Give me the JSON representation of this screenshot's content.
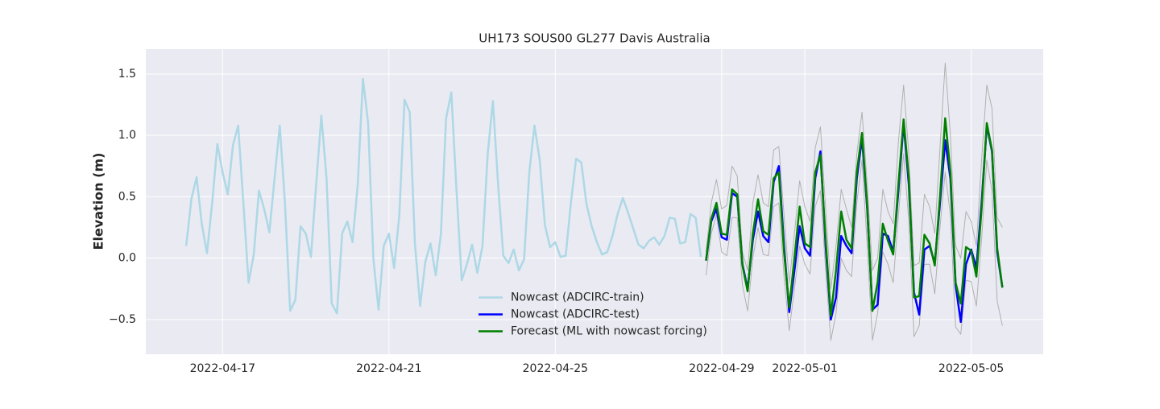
{
  "chart_data": {
    "type": "line",
    "title": "UH173 SOUS00 GL277 Davis Australia",
    "y_label": "Elevation (m)",
    "xlim": [
      "2022-04-15 03:42",
      "2022-05-06 17:33"
    ],
    "xticks": [
      "2022-04-17",
      "2022-04-21",
      "2022-04-25",
      "2022-04-29",
      "2022-05-01",
      "2022-05-05"
    ],
    "ylim": [
      -0.783,
      1.703
    ],
    "yticks": [
      {
        "value": -0.5,
        "label": "−0.5"
      },
      {
        "value": 0,
        "label": "0.0"
      },
      0.5,
      {
        "value": 1,
        "label": "1.0"
      },
      1.5
    ],
    "grid": true,
    "legend_position": "lower center",
    "series": [
      {
        "color": "#b0b0b0",
        "width": 1,
        "x": [
          "2022-04-28 15:00",
          "2022-04-28 18:00",
          "2022-04-28 21:00",
          "2022-04-29 00:00",
          "2022-04-29 03:00",
          "2022-04-29 06:00",
          "2022-04-29 09:00",
          "2022-04-29 12:00",
          "2022-04-29 15:00",
          "2022-04-29 18:00",
          "2022-04-29 21:00",
          "2022-04-30 00:00",
          "2022-04-30 03:00",
          "2022-04-30 06:00",
          "2022-04-30 09:00",
          "2022-04-30 12:00",
          "2022-04-30 15:00",
          "2022-04-30 18:00",
          "2022-04-30 21:00",
          "2022-05-01 00:00",
          "2022-05-01 03:00",
          "2022-05-01 06:00",
          "2022-05-01 09:00",
          "2022-05-01 12:00",
          "2022-05-01 15:00",
          "2022-05-01 18:00",
          "2022-05-01 21:00",
          "2022-05-02 00:00",
          "2022-05-02 03:00",
          "2022-05-02 06:00",
          "2022-05-02 09:00",
          "2022-05-02 12:00",
          "2022-05-02 15:00",
          "2022-05-02 18:00",
          "2022-05-02 21:00",
          "2022-05-03 00:00",
          "2022-05-03 03:00",
          "2022-05-03 06:00",
          "2022-05-03 09:00",
          "2022-05-03 12:00",
          "2022-05-03 15:00",
          "2022-05-03 18:00",
          "2022-05-03 21:00",
          "2022-05-04 00:00",
          "2022-05-04 03:00",
          "2022-05-04 06:00",
          "2022-05-04 09:00",
          "2022-05-04 12:00",
          "2022-05-04 15:00",
          "2022-05-04 18:00",
          "2022-05-04 21:00",
          "2022-05-05 00:00",
          "2022-05-05 03:00",
          "2022-05-05 06:00",
          "2022-05-05 09:00",
          "2022-05-05 12:00",
          "2022-05-05 15:00",
          "2022-05-05 18:00"
        ],
        "values": [
          0.05,
          0.45,
          0.64,
          0.4,
          0.43,
          0.75,
          0.67,
          0.05,
          -0.1,
          0.45,
          0.68,
          0.45,
          0.42,
          0.88,
          0.91,
          0.35,
          -0.2,
          0.2,
          0.63,
          0.42,
          0.3,
          0.9,
          1.07,
          0.4,
          -0.25,
          0.1,
          0.56,
          0.4,
          0.25,
          0.85,
          1.19,
          0.6,
          -0.1,
          0.0,
          0.56,
          0.38,
          0.28,
          0.95,
          1.41,
          0.85,
          -0.06,
          -0.04,
          0.52,
          0.42,
          0.2,
          0.9,
          1.59,
          1.0,
          0.1,
          0.0,
          0.38,
          0.3,
          0.1,
          0.8,
          1.41,
          1.22,
          0.33,
          0.25
        ]
      },
      {
        "color": "#b0b0b0",
        "width": 1,
        "x": [
          "2022-04-28 15:00",
          "2022-04-28 18:00",
          "2022-04-28 21:00",
          "2022-04-29 00:00",
          "2022-04-29 03:00",
          "2022-04-29 06:00",
          "2022-04-29 09:00",
          "2022-04-29 12:00",
          "2022-04-29 15:00",
          "2022-04-29 18:00",
          "2022-04-29 21:00",
          "2022-04-30 00:00",
          "2022-04-30 03:00",
          "2022-04-30 06:00",
          "2022-04-30 09:00",
          "2022-04-30 12:00",
          "2022-04-30 15:00",
          "2022-04-30 18:00",
          "2022-04-30 21:00",
          "2022-05-01 00:00",
          "2022-05-01 03:00",
          "2022-05-01 06:00",
          "2022-05-01 09:00",
          "2022-05-01 12:00",
          "2022-05-01 15:00",
          "2022-05-01 18:00",
          "2022-05-01 21:00",
          "2022-05-02 00:00",
          "2022-05-02 03:00",
          "2022-05-02 06:00",
          "2022-05-02 09:00",
          "2022-05-02 12:00",
          "2022-05-02 15:00",
          "2022-05-02 18:00",
          "2022-05-02 21:00",
          "2022-05-03 00:00",
          "2022-05-03 03:00",
          "2022-05-03 06:00",
          "2022-05-03 09:00",
          "2022-05-03 12:00",
          "2022-05-03 15:00",
          "2022-05-03 18:00",
          "2022-05-03 21:00",
          "2022-05-04 00:00",
          "2022-05-04 03:00",
          "2022-05-04 06:00",
          "2022-05-04 09:00",
          "2022-05-04 12:00",
          "2022-05-04 15:00",
          "2022-05-04 18:00",
          "2022-05-04 21:00",
          "2022-05-05 00:00",
          "2022-05-05 03:00",
          "2022-05-05 06:00",
          "2022-05-05 09:00",
          "2022-05-05 12:00",
          "2022-05-05 15:00",
          "2022-05-05 18:00"
        ],
        "values": [
          -0.14,
          0.2,
          0.35,
          0.05,
          0.02,
          0.33,
          0.33,
          -0.22,
          -0.43,
          0.0,
          0.25,
          0.03,
          0.02,
          0.42,
          0.45,
          -0.15,
          -0.59,
          -0.25,
          0.1,
          -0.05,
          -0.13,
          0.42,
          0.55,
          -0.1,
          -0.67,
          -0.45,
          0.0,
          -0.1,
          -0.15,
          0.45,
          0.8,
          0.1,
          -0.67,
          -0.45,
          0.05,
          -0.05,
          -0.2,
          0.35,
          0.85,
          0.3,
          -0.64,
          -0.55,
          -0.05,
          -0.05,
          -0.29,
          0.25,
          0.7,
          0.35,
          -0.56,
          -0.62,
          -0.18,
          -0.19,
          -0.39,
          0.15,
          0.8,
          0.55,
          -0.35,
          -0.55
        ]
      },
      {
        "name": "Nowcast (ADCIRC-train)",
        "color": "#add8e6",
        "width": 2.5,
        "x": [
          "2022-04-16 03:00",
          "2022-04-16 06:00",
          "2022-04-16 09:00",
          "2022-04-16 12:00",
          "2022-04-16 15:00",
          "2022-04-16 18:00",
          "2022-04-16 21:00",
          "2022-04-17 00:00",
          "2022-04-17 03:00",
          "2022-04-17 06:00",
          "2022-04-17 09:00",
          "2022-04-17 12:00",
          "2022-04-17 15:00",
          "2022-04-17 18:00",
          "2022-04-17 21:00",
          "2022-04-18 00:00",
          "2022-04-18 03:00",
          "2022-04-18 06:00",
          "2022-04-18 09:00",
          "2022-04-18 12:00",
          "2022-04-18 15:00",
          "2022-04-18 18:00",
          "2022-04-18 21:00",
          "2022-04-19 00:00",
          "2022-04-19 03:00",
          "2022-04-19 06:00",
          "2022-04-19 09:00",
          "2022-04-19 12:00",
          "2022-04-19 15:00",
          "2022-04-19 18:00",
          "2022-04-19 21:00",
          "2022-04-20 00:00",
          "2022-04-20 03:00",
          "2022-04-20 06:00",
          "2022-04-20 09:00",
          "2022-04-20 12:00",
          "2022-04-20 15:00",
          "2022-04-20 18:00",
          "2022-04-20 21:00",
          "2022-04-21 00:00",
          "2022-04-21 03:00",
          "2022-04-21 06:00",
          "2022-04-21 09:00",
          "2022-04-21 12:00",
          "2022-04-21 15:00",
          "2022-04-21 18:00",
          "2022-04-21 21:00",
          "2022-04-22 00:00",
          "2022-04-22 03:00",
          "2022-04-22 06:00",
          "2022-04-22 09:00",
          "2022-04-22 12:00",
          "2022-04-22 15:00",
          "2022-04-22 18:00",
          "2022-04-22 21:00",
          "2022-04-23 00:00",
          "2022-04-23 03:00",
          "2022-04-23 06:00",
          "2022-04-23 09:00",
          "2022-04-23 12:00",
          "2022-04-23 15:00",
          "2022-04-23 18:00",
          "2022-04-23 21:00",
          "2022-04-24 00:00",
          "2022-04-24 03:00",
          "2022-04-24 06:00",
          "2022-04-24 09:00",
          "2022-04-24 12:00",
          "2022-04-24 15:00",
          "2022-04-24 18:00",
          "2022-04-24 21:00",
          "2022-04-25 00:00",
          "2022-04-25 03:00",
          "2022-04-25 06:00",
          "2022-04-25 09:00",
          "2022-04-25 12:00",
          "2022-04-25 15:00",
          "2022-04-25 18:00",
          "2022-04-25 21:00",
          "2022-04-26 00:00",
          "2022-04-26 03:00",
          "2022-04-26 06:00",
          "2022-04-26 09:00",
          "2022-04-26 12:00",
          "2022-04-26 15:00",
          "2022-04-26 18:00",
          "2022-04-26 21:00",
          "2022-04-27 00:00",
          "2022-04-27 03:00",
          "2022-04-27 06:00",
          "2022-04-27 09:00",
          "2022-04-27 12:00",
          "2022-04-27 15:00",
          "2022-04-27 18:00",
          "2022-04-27 21:00",
          "2022-04-28 00:00",
          "2022-04-28 03:00",
          "2022-04-28 06:00",
          "2022-04-28 09:00",
          "2022-04-28 12:00"
        ],
        "values": [
          0.1,
          0.48,
          0.66,
          0.28,
          0.04,
          0.45,
          0.93,
          0.7,
          0.52,
          0.92,
          1.08,
          0.45,
          -0.2,
          0.03,
          0.55,
          0.4,
          0.21,
          0.65,
          1.08,
          0.45,
          -0.43,
          -0.34,
          0.26,
          0.2,
          0.01,
          0.6,
          1.16,
          0.65,
          -0.37,
          -0.45,
          0.2,
          0.3,
          0.13,
          0.6,
          1.46,
          1.1,
          0.0,
          -0.42,
          0.1,
          0.2,
          -0.08,
          0.35,
          1.29,
          1.19,
          0.12,
          -0.39,
          -0.03,
          0.12,
          -0.14,
          0.2,
          1.14,
          1.35,
          0.55,
          -0.18,
          -0.05,
          0.11,
          -0.12,
          0.1,
          0.85,
          1.28,
          0.6,
          0.02,
          -0.04,
          0.07,
          -0.1,
          -0.01,
          0.7,
          1.08,
          0.8,
          0.27,
          0.09,
          0.13,
          0.01,
          0.02,
          0.45,
          0.81,
          0.78,
          0.44,
          0.26,
          0.13,
          0.03,
          0.05,
          0.18,
          0.36,
          0.49,
          0.37,
          0.24,
          0.11,
          0.08,
          0.14,
          0.17,
          0.11,
          0.18,
          0.33,
          0.32,
          0.12,
          0.13,
          0.36,
          0.33,
          0.01
        ]
      },
      {
        "name": "Nowcast (ADCIRC-test)",
        "color": "#0000ff",
        "width": 2.5,
        "x": [
          "2022-04-28 15:00",
          "2022-04-28 18:00",
          "2022-04-28 21:00",
          "2022-04-29 00:00",
          "2022-04-29 03:00",
          "2022-04-29 06:00",
          "2022-04-29 09:00",
          "2022-04-29 12:00",
          "2022-04-29 15:00",
          "2022-04-29 18:00",
          "2022-04-29 21:00",
          "2022-04-30 00:00",
          "2022-04-30 03:00",
          "2022-04-30 06:00",
          "2022-04-30 09:00",
          "2022-04-30 12:00",
          "2022-04-30 15:00",
          "2022-04-30 18:00",
          "2022-04-30 21:00",
          "2022-05-01 00:00",
          "2022-05-01 03:00",
          "2022-05-01 06:00",
          "2022-05-01 09:00",
          "2022-05-01 12:00",
          "2022-05-01 15:00",
          "2022-05-01 18:00",
          "2022-05-01 21:00",
          "2022-05-02 00:00",
          "2022-05-02 03:00",
          "2022-05-02 06:00",
          "2022-05-02 09:00",
          "2022-05-02 12:00",
          "2022-05-02 15:00",
          "2022-05-02 18:00",
          "2022-05-02 21:00",
          "2022-05-03 00:00",
          "2022-05-03 03:00",
          "2022-05-03 06:00",
          "2022-05-03 09:00",
          "2022-05-03 12:00",
          "2022-05-03 15:00",
          "2022-05-03 18:00",
          "2022-05-03 21:00",
          "2022-05-04 00:00",
          "2022-05-04 03:00",
          "2022-05-04 06:00",
          "2022-05-04 09:00",
          "2022-05-04 12:00",
          "2022-05-04 15:00",
          "2022-05-04 18:00",
          "2022-05-04 21:00",
          "2022-05-05 00:00",
          "2022-05-05 03:00",
          "2022-05-05 06:00",
          "2022-05-05 09:00",
          "2022-05-05 12:00",
          "2022-05-05 15:00",
          "2022-05-05 18:00"
        ],
        "values": [
          -0.02,
          0.3,
          0.4,
          0.17,
          0.15,
          0.53,
          0.5,
          -0.05,
          -0.25,
          0.15,
          0.38,
          0.18,
          0.13,
          0.62,
          0.75,
          0.1,
          -0.44,
          -0.1,
          0.26,
          0.08,
          0.02,
          0.65,
          0.87,
          0.1,
          -0.5,
          -0.32,
          0.18,
          0.1,
          0.04,
          0.65,
          0.98,
          0.4,
          -0.42,
          -0.38,
          0.2,
          0.18,
          0.05,
          0.55,
          1.1,
          0.6,
          -0.28,
          -0.46,
          0.07,
          0.1,
          -0.04,
          0.45,
          0.96,
          0.65,
          -0.22,
          -0.52,
          -0.05,
          0.07,
          -0.08,
          0.45,
          1.08,
          0.87,
          0.05,
          -0.24
        ]
      },
      {
        "name": "Forecast (ML with nowcast forcing)",
        "color": "#008000",
        "width": 2.5,
        "x": [
          "2022-04-28 15:00",
          "2022-04-28 18:00",
          "2022-04-28 21:00",
          "2022-04-29 00:00",
          "2022-04-29 03:00",
          "2022-04-29 06:00",
          "2022-04-29 09:00",
          "2022-04-29 12:00",
          "2022-04-29 15:00",
          "2022-04-29 18:00",
          "2022-04-29 21:00",
          "2022-04-30 00:00",
          "2022-04-30 03:00",
          "2022-04-30 06:00",
          "2022-04-30 09:00",
          "2022-04-30 12:00",
          "2022-04-30 15:00",
          "2022-04-30 18:00",
          "2022-04-30 21:00",
          "2022-05-01 00:00",
          "2022-05-01 03:00",
          "2022-05-01 06:00",
          "2022-05-01 09:00",
          "2022-05-01 12:00",
          "2022-05-01 15:00",
          "2022-05-01 18:00",
          "2022-05-01 21:00",
          "2022-05-02 00:00",
          "2022-05-02 03:00",
          "2022-05-02 06:00",
          "2022-05-02 09:00",
          "2022-05-02 12:00",
          "2022-05-02 15:00",
          "2022-05-02 18:00",
          "2022-05-02 21:00",
          "2022-05-03 00:00",
          "2022-05-03 03:00",
          "2022-05-03 06:00",
          "2022-05-03 09:00",
          "2022-05-03 12:00",
          "2022-05-03 15:00",
          "2022-05-03 18:00",
          "2022-05-03 21:00",
          "2022-05-04 00:00",
          "2022-05-04 03:00",
          "2022-05-04 06:00",
          "2022-05-04 09:00",
          "2022-05-04 12:00",
          "2022-05-04 15:00",
          "2022-05-04 18:00",
          "2022-05-04 21:00",
          "2022-05-05 00:00",
          "2022-05-05 03:00",
          "2022-05-05 06:00",
          "2022-05-05 09:00",
          "2022-05-05 12:00",
          "2022-05-05 15:00",
          "2022-05-05 18:00"
        ],
        "values": [
          -0.02,
          0.32,
          0.45,
          0.2,
          0.19,
          0.56,
          0.52,
          -0.06,
          -0.27,
          0.2,
          0.48,
          0.22,
          0.19,
          0.65,
          0.7,
          0.05,
          -0.4,
          0.0,
          0.42,
          0.12,
          0.09,
          0.7,
          0.84,
          0.15,
          -0.47,
          -0.1,
          0.38,
          0.15,
          0.08,
          0.7,
          1.02,
          0.42,
          -0.43,
          -0.2,
          0.28,
          0.14,
          0.03,
          0.6,
          1.13,
          0.65,
          -0.32,
          -0.31,
          0.19,
          0.12,
          -0.06,
          0.5,
          1.14,
          0.7,
          -0.2,
          -0.37,
          0.09,
          0.06,
          -0.15,
          0.4,
          1.1,
          0.88,
          0.08,
          -0.24
        ]
      }
    ]
  }
}
